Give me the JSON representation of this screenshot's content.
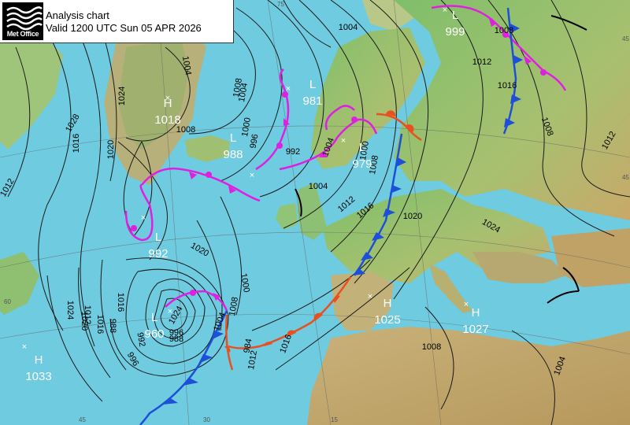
{
  "header": {
    "logo_text": "Met Office",
    "title": "Analysis chart",
    "valid": "Valid 1200 UTC Sun 05 APR 2026"
  },
  "colors": {
    "sea": "#6ecbe0",
    "cold_front": "#1d4fd8",
    "warm_front": "#e8501f",
    "occluded_front": "#e020e0",
    "trough": "#000000",
    "isobar": "#1a1a1a",
    "label": "#ffffff"
  },
  "pressure_centres": [
    {
      "type": "H",
      "value": "1018"
    },
    {
      "type": "L",
      "value": "988"
    },
    {
      "type": "L",
      "value": "981"
    },
    {
      "type": "L",
      "value": "979"
    },
    {
      "type": "L",
      "value": "999"
    },
    {
      "type": "L",
      "value": "992"
    },
    {
      "type": "L",
      "value": "960"
    },
    {
      "type": "H",
      "value": "1025"
    },
    {
      "type": "H",
      "value": "1027"
    },
    {
      "type": "H",
      "value": "1033"
    }
  ],
  "isobar_labels": [
    "1004",
    "1008",
    "1012",
    "1016",
    "1008",
    "1004",
    "1000",
    "996",
    "992",
    "1004",
    "1008",
    "1012",
    "1016",
    "1020",
    "1024",
    "1000",
    "1004",
    "1008",
    "1012",
    "1016",
    "1020",
    "1024",
    "1028",
    "1012",
    "1008",
    "1004",
    "1020",
    "1016",
    "1012",
    "1024",
    "1020",
    "1016",
    "988",
    "992",
    "996",
    "1000",
    "1008",
    "1004",
    "996",
    "988",
    "984",
    "1012",
    "1016",
    "1008",
    "1004",
    "1024"
  ],
  "grid_labels": [
    "75",
    "45",
    "30",
    "15",
    "45",
    "45",
    "60"
  ]
}
